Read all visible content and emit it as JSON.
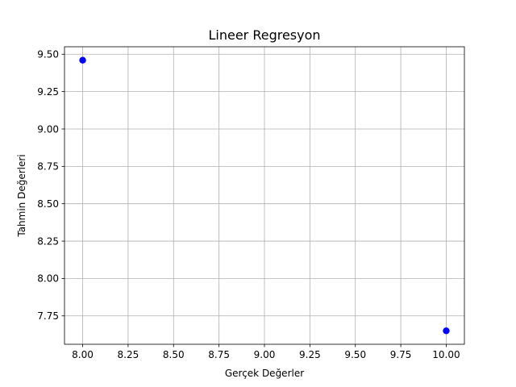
{
  "chart_data": {
    "type": "scatter",
    "title": "Lineer Regresyon",
    "xlabel": "Gerçek Değerler",
    "ylabel": "Tahmin Değerleri",
    "xlim": [
      7.9,
      10.1
    ],
    "ylim": [
      7.56,
      9.55
    ],
    "x_ticks": [
      "8.00",
      "8.25",
      "8.50",
      "8.75",
      "9.00",
      "9.25",
      "9.50",
      "9.75",
      "10.00"
    ],
    "y_ticks": [
      "7.75",
      "8.00",
      "8.25",
      "8.50",
      "8.75",
      "9.00",
      "9.25",
      "9.50"
    ],
    "grid": true,
    "marker_color": "#0000ff",
    "points": [
      {
        "x": 8.0,
        "y": 9.46
      },
      {
        "x": 10.0,
        "y": 7.65
      }
    ]
  }
}
